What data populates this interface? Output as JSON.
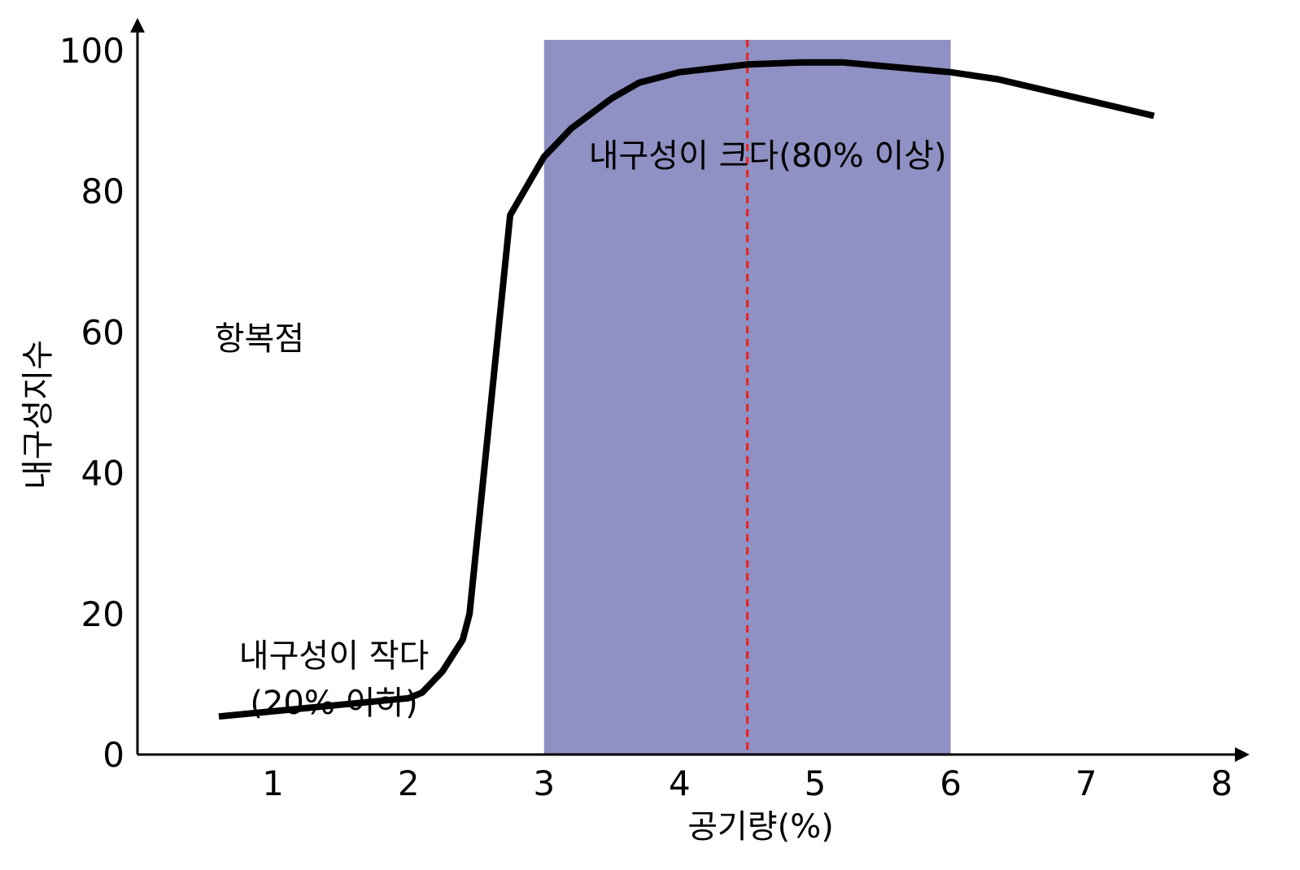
{
  "chart_data": {
    "type": "line",
    "xlabel": "공기량(%)",
    "ylabel": "내구성지수",
    "xlim": [
      0,
      8
    ],
    "ylim": [
      0,
      100
    ],
    "x_ticks": [
      1,
      2,
      3,
      4,
      5,
      6,
      7,
      8
    ],
    "y_ticks": [
      0,
      20,
      40,
      60,
      80,
      100
    ],
    "grid": false,
    "series": [
      {
        "color": "#000000",
        "x": [
          0.6,
          2.0,
          2.1,
          2.25,
          2.4,
          2.45,
          2.75,
          3.0,
          3.2,
          3.5,
          3.7,
          4.0,
          4.5,
          4.9,
          5.2,
          6.0,
          6.35,
          7.5
        ],
        "y": [
          5.4,
          8.0,
          8.8,
          11.8,
          16.3,
          20.0,
          76.6,
          84.9,
          88.9,
          93.2,
          95.4,
          96.9,
          98.0,
          98.3,
          98.3,
          96.9,
          95.9,
          90.7
        ]
      }
    ],
    "shaded_region": {
      "x_start": 3.0,
      "x_end": 6.0,
      "color": "#8f90c3"
    },
    "reference_line": {
      "x": 4.5,
      "color": "#e8211c",
      "style": "dashed"
    },
    "annotations": [
      {
        "lines": [
          "항복점"
        ],
        "x": 0.9,
        "y": 57.5
      },
      {
        "lines": [
          "내구성이 작다",
          "(20% 이하)"
        ],
        "x": 1.45,
        "y": 12.5
      },
      {
        "lines": [
          "내구성이 크다(80% 이상)"
        ],
        "x": 4.65,
        "y": 83.5
      }
    ]
  }
}
